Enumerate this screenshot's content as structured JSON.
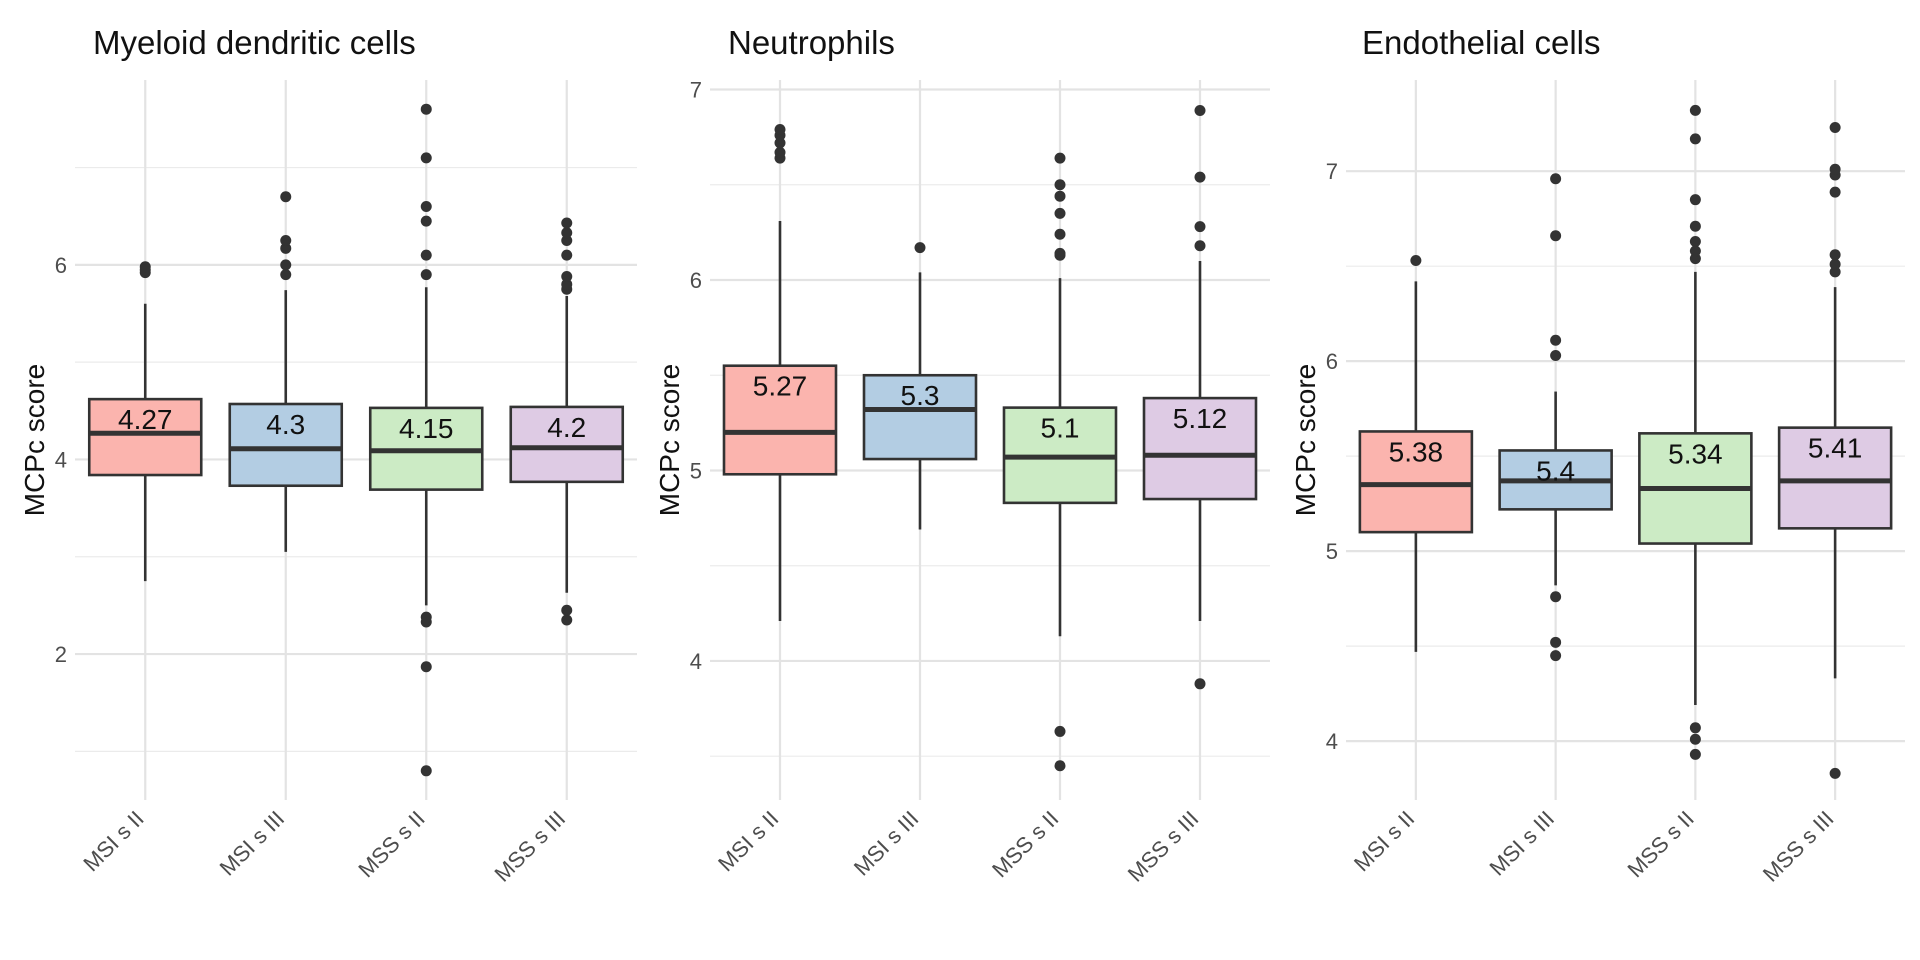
{
  "chart_data": [
    {
      "type": "box",
      "title": "Myeloid dendritic cells",
      "ylabel": "MCPc score",
      "xlabel": "",
      "categories": [
        "MSI s II",
        "MSI s III",
        "MSS s II",
        "MSS s III"
      ],
      "ylim": [
        0.5,
        7.9
      ],
      "yticks": [
        2,
        4,
        6
      ],
      "grid": true,
      "legend": "none",
      "boxes": [
        {
          "category": "MSI s II",
          "fill": "#fbb4ae",
          "q1": 3.84,
          "median": 4.27,
          "q3": 4.62,
          "whisker_low": 2.75,
          "whisker_high": 5.6,
          "outliers": [
            5.92,
            5.95,
            5.98
          ],
          "label": "4.27"
        },
        {
          "category": "MSI s III",
          "fill": "#b3cde3",
          "q1": 3.73,
          "median": 4.11,
          "q3": 4.57,
          "whisker_low": 3.05,
          "whisker_high": 5.74,
          "outliers": [
            5.9,
            6.0,
            6.17,
            6.25,
            6.7
          ],
          "label": "4.3"
        },
        {
          "category": "MSS s II",
          "fill": "#ccebc5",
          "q1": 3.69,
          "median": 4.09,
          "q3": 4.53,
          "whisker_low": 2.5,
          "whisker_high": 5.77,
          "outliers": [
            0.8,
            1.87,
            2.33,
            2.38,
            5.9,
            6.1,
            6.45,
            6.6,
            7.1,
            7.6
          ],
          "label": "4.15"
        },
        {
          "category": "MSS s III",
          "fill": "#decbe4",
          "q1": 3.77,
          "median": 4.12,
          "q3": 4.54,
          "whisker_low": 2.63,
          "whisker_high": 5.68,
          "outliers": [
            2.35,
            2.45,
            5.75,
            5.8,
            5.88,
            6.1,
            6.25,
            6.33,
            6.43
          ],
          "label": "4.2"
        }
      ]
    },
    {
      "type": "box",
      "title": "Neutrophils",
      "ylabel": "MCPc score",
      "xlabel": "",
      "categories": [
        "MSI s II",
        "MSI s III",
        "MSS s II",
        "MSS s III"
      ],
      "ylim": [
        3.27,
        7.05
      ],
      "yticks": [
        4,
        5,
        6,
        7
      ],
      "grid": true,
      "legend": "none",
      "boxes": [
        {
          "category": "MSI s II",
          "fill": "#fbb4ae",
          "q1": 4.98,
          "median": 5.2,
          "q3": 5.55,
          "whisker_low": 4.21,
          "whisker_high": 6.31,
          "outliers": [
            6.64,
            6.67,
            6.72,
            6.76,
            6.79
          ],
          "label": "5.27"
        },
        {
          "category": "MSI s III",
          "fill": "#b3cde3",
          "q1": 5.06,
          "median": 5.32,
          "q3": 5.5,
          "whisker_low": 4.69,
          "whisker_high": 6.04,
          "outliers": [
            6.17
          ],
          "label": "5.3"
        },
        {
          "category": "MSS s II",
          "fill": "#ccebc5",
          "q1": 4.83,
          "median": 5.07,
          "q3": 5.33,
          "whisker_low": 4.13,
          "whisker_high": 6.01,
          "outliers": [
            3.45,
            3.63,
            6.13,
            6.14,
            6.24,
            6.35,
            6.44,
            6.5,
            6.64
          ],
          "label": "5.1"
        },
        {
          "category": "MSS s III",
          "fill": "#decbe4",
          "q1": 4.85,
          "median": 5.08,
          "q3": 5.38,
          "whisker_low": 4.21,
          "whisker_high": 6.1,
          "outliers": [
            3.88,
            6.18,
            6.28,
            6.54,
            6.89
          ],
          "label": "5.12"
        }
      ]
    },
    {
      "type": "box",
      "title": "Endothelial cells",
      "ylabel": "MCPc score",
      "xlabel": "",
      "categories": [
        "MSI s II",
        "MSI s III",
        "MSS s II",
        "MSS s III"
      ],
      "ylim": [
        3.69,
        7.48
      ],
      "yticks": [
        4,
        5,
        6,
        7
      ],
      "grid": true,
      "legend": "none",
      "boxes": [
        {
          "category": "MSI s II",
          "fill": "#fbb4ae",
          "q1": 5.1,
          "median": 5.35,
          "q3": 5.63,
          "whisker_low": 4.47,
          "whisker_high": 6.42,
          "outliers": [
            6.53
          ],
          "label": "5.38"
        },
        {
          "category": "MSI s III",
          "fill": "#b3cde3",
          "q1": 5.22,
          "median": 5.37,
          "q3": 5.53,
          "whisker_low": 4.82,
          "whisker_high": 5.84,
          "outliers": [
            4.45,
            4.52,
            4.76,
            6.03,
            6.11,
            6.66,
            6.96
          ],
          "label": "5.4"
        },
        {
          "category": "MSS s II",
          "fill": "#ccebc5",
          "q1": 5.04,
          "median": 5.33,
          "q3": 5.62,
          "whisker_low": 4.19,
          "whisker_high": 6.47,
          "outliers": [
            3.93,
            4.01,
            4.07,
            6.54,
            6.58,
            6.63,
            6.71,
            6.85,
            7.17,
            7.32
          ],
          "label": "5.34"
        },
        {
          "category": "MSS s III",
          "fill": "#decbe4",
          "q1": 5.12,
          "median": 5.37,
          "q3": 5.65,
          "whisker_low": 4.33,
          "whisker_high": 6.39,
          "outliers": [
            3.83,
            6.47,
            6.51,
            6.56,
            6.89,
            6.98,
            7.01,
            7.23
          ],
          "label": "5.41"
        }
      ]
    }
  ]
}
